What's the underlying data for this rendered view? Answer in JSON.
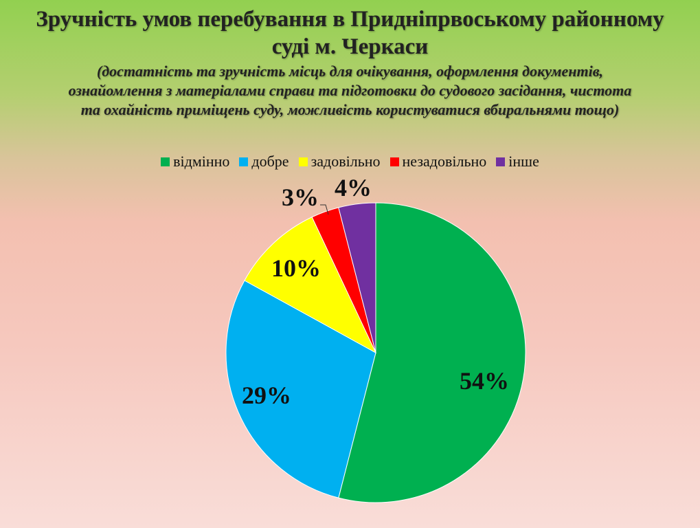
{
  "chart_data": {
    "type": "pie",
    "title": "Зручність умов перебування в Придніпрвоському районному суді м. Черкаси",
    "subtitle": "(достатність та зручність місць для очікування, оформлення документів, ознайомлення з матеріалами справи та підготовки до судового засідання, чистота та охайність приміщень суду, можливість користуватися вбиральнями тощо)",
    "title_lines": [
      "Зручність умов перебування в Придніпрвоському районному",
      "суді м. Черкаси"
    ],
    "subtitle_lines": [
      "(достатність та зручність місць для очікування, оформлення документів,",
      "ознайомлення з матеріалами справи та підготовки до судового засідання, чистота",
      "та охайність приміщень суду, можливість користуватися вбиральнями тощо)"
    ],
    "legend_position": "top",
    "categories": [
      "відмінно",
      "добре",
      "задовільно",
      "незадовільно",
      "інше"
    ],
    "values": [
      54,
      29,
      10,
      3,
      4
    ],
    "data_labels": [
      "54%",
      "29%",
      "10%",
      "3%",
      "4%"
    ],
    "colors": [
      "#00b050",
      "#00b0f0",
      "#ffff00",
      "#ff0000",
      "#7030a0"
    ]
  }
}
